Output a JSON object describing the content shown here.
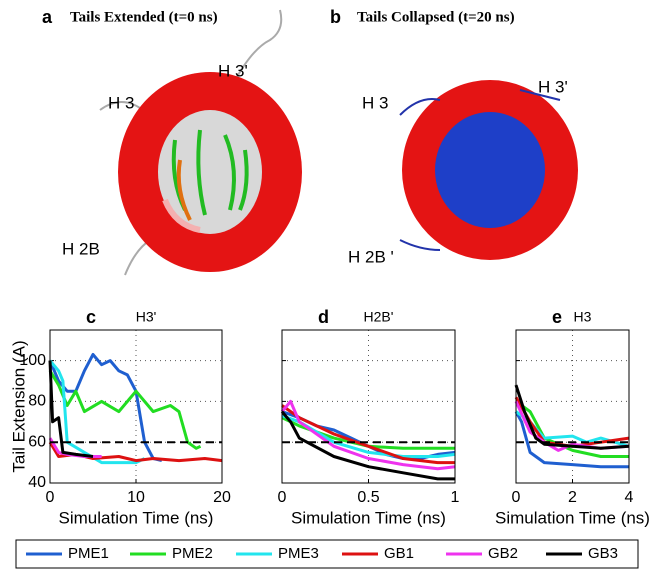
{
  "panels": [
    {
      "letter": "a",
      "title": "Tails Extended (t=0 ns)",
      "labels": [
        "H 3",
        "H 3'",
        "H 2B"
      ]
    },
    {
      "letter": "b",
      "title": "Tails Collapsed (t=20 ns)",
      "labels": [
        "H 3",
        "H 3'",
        "H 2B '"
      ]
    }
  ],
  "legend": [
    {
      "name": "PME1",
      "color": "#1f5fd0"
    },
    {
      "name": "PME2",
      "color": "#22dd22"
    },
    {
      "name": "PME3",
      "color": "#22e5ee"
    },
    {
      "name": "GB1",
      "color": "#dd1111"
    },
    {
      "name": "GB2",
      "color": "#ee33ee"
    },
    {
      "name": "GB3",
      "color": "#000000"
    }
  ],
  "chart_data": [
    {
      "type": "line",
      "panel": "c",
      "title": "H3'",
      "ylabel": "Tail Extension (A)",
      "xlabel": "Simulation Time (ns)",
      "xlim": [
        0,
        20
      ],
      "xticks": [
        0,
        10,
        20
      ],
      "ylim": [
        40,
        115
      ],
      "yticks": [
        40,
        60,
        80,
        100
      ],
      "show_ytick_labels": true,
      "grid": true,
      "hline": 60,
      "series": [
        {
          "x": [
            0,
            1,
            2,
            3,
            4,
            5,
            6,
            7,
            8,
            9,
            10,
            11,
            12,
            13
          ],
          "values": [
            100,
            90,
            85,
            85,
            95,
            103,
            98,
            100,
            95,
            93,
            85,
            60,
            52,
            51
          ]
        },
        {
          "x": [
            0,
            1,
            2,
            3,
            4,
            6,
            8,
            10,
            12,
            14,
            15,
            16,
            17,
            17.5
          ],
          "values": [
            95,
            88,
            78,
            85,
            75,
            80,
            75,
            85,
            75,
            78,
            75,
            60,
            57,
            58
          ]
        },
        {
          "x": [
            0,
            1,
            1.5,
            2,
            4,
            6,
            8,
            10,
            11
          ],
          "values": [
            100,
            95,
            90,
            60,
            55,
            50,
            50,
            50,
            52
          ]
        },
        {
          "x": [
            0,
            1,
            3,
            5,
            8,
            10,
            12,
            15,
            18,
            20
          ],
          "values": [
            60,
            53,
            54,
            52,
            53,
            51,
            52,
            51,
            52,
            51
          ]
        },
        {
          "x": [
            0,
            1,
            2,
            4,
            6
          ],
          "values": [
            62,
            55,
            54,
            53,
            53
          ]
        },
        {
          "x": [
            0,
            0.3,
            1,
            1.5,
            3,
            5
          ],
          "values": [
            100,
            70,
            72,
            55,
            54,
            53
          ]
        }
      ]
    },
    {
      "type": "line",
      "panel": "d",
      "title": "H2B'",
      "xlabel": "Simulation Time (ns)",
      "xlim": [
        0,
        1
      ],
      "xticks": [
        0,
        0.5,
        1
      ],
      "ylim": [
        40,
        115
      ],
      "yticks": [
        40,
        60,
        80,
        100
      ],
      "show_ytick_labels": false,
      "grid": true,
      "hline": 60,
      "series": [
        {
          "x": [
            0,
            0.1,
            0.2,
            0.3,
            0.4,
            0.5,
            0.6,
            0.7,
            0.8,
            0.9,
            1
          ],
          "values": [
            75,
            72,
            68,
            66,
            62,
            58,
            54,
            52,
            52,
            54,
            55
          ]
        },
        {
          "x": [
            0,
            0.1,
            0.3,
            0.5,
            0.7,
            0.9,
            1
          ],
          "values": [
            72,
            68,
            62,
            58,
            57,
            57,
            57
          ]
        },
        {
          "x": [
            0,
            0.1,
            0.3,
            0.5,
            0.7,
            0.9,
            1
          ],
          "values": [
            73,
            70,
            60,
            55,
            53,
            53,
            54
          ]
        },
        {
          "x": [
            0,
            0.1,
            0.3,
            0.5,
            0.7,
            0.9,
            1
          ],
          "values": [
            78,
            72,
            64,
            58,
            52,
            50,
            50
          ]
        },
        {
          "x": [
            0,
            0.05,
            0.1,
            0.3,
            0.5,
            0.7,
            0.9,
            1
          ],
          "values": [
            75,
            80,
            70,
            58,
            52,
            49,
            47,
            48
          ]
        },
        {
          "x": [
            0,
            0.05,
            0.1,
            0.3,
            0.5,
            0.7,
            0.9,
            1
          ],
          "values": [
            75,
            70,
            62,
            53,
            48,
            45,
            42,
            42
          ]
        }
      ]
    },
    {
      "type": "line",
      "panel": "e",
      "title": "H3",
      "xlabel": "Simulation Time (ns)",
      "xlim": [
        0,
        4
      ],
      "xticks": [
        0,
        2,
        4
      ],
      "ylim": [
        40,
        115
      ],
      "yticks": [
        40,
        60,
        80,
        100
      ],
      "show_ytick_labels": false,
      "grid": true,
      "hline": 60,
      "series": [
        {
          "x": [
            0,
            0.2,
            0.5,
            1,
            2,
            3,
            4
          ],
          "values": [
            75,
            70,
            55,
            50,
            49,
            48,
            48
          ]
        },
        {
          "x": [
            0,
            0.5,
            1,
            2,
            3,
            4
          ],
          "values": [
            80,
            75,
            62,
            56,
            53,
            53
          ]
        },
        {
          "x": [
            0,
            0.5,
            1,
            2,
            2.5,
            3,
            4
          ],
          "values": [
            75,
            70,
            62,
            63,
            60,
            62,
            58
          ]
        },
        {
          "x": [
            0,
            0.5,
            1,
            2,
            3,
            4
          ],
          "values": [
            82,
            70,
            60,
            58,
            60,
            62
          ]
        },
        {
          "x": [
            0,
            0.5,
            1,
            1.5,
            2,
            3,
            4
          ],
          "values": [
            80,
            65,
            60,
            56,
            59,
            57,
            58
          ]
        },
        {
          "x": [
            0,
            0.3,
            0.7,
            1,
            2,
            3,
            4
          ],
          "values": [
            88,
            75,
            62,
            59,
            58,
            57,
            58
          ]
        }
      ]
    }
  ]
}
